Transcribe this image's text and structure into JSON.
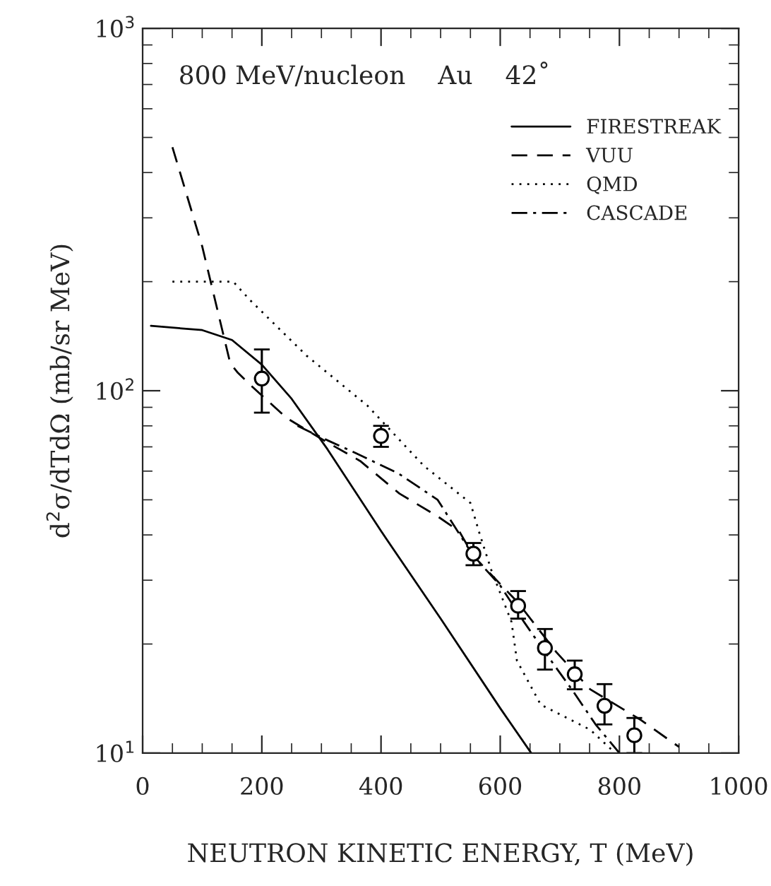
{
  "chart_data": {
    "type": "line",
    "xlabel": "NEUTRON KINETIC ENERGY, T (MeV)",
    "ylabel": "d$^{2}$σ/dTdΩ (mb/sr MeV)",
    "annotations": [
      "800 MeV/nucleon    Au    42˚"
    ],
    "log": "y",
    "xlim": [
      0,
      1000
    ],
    "ylim": [
      10,
      1000
    ],
    "xticks": [
      0,
      200,
      400,
      600,
      800,
      1000
    ],
    "yticks": [
      {
        "value": 10,
        "label": "10$^{1}$"
      },
      {
        "value": 100,
        "label": "10$^{2}$"
      },
      {
        "value": 1000,
        "label": "10$^{3}$"
      }
    ],
    "grid": false,
    "legend": "top right",
    "series": [
      {
        "name": "FIRESTREAK",
        "line_style": "solid",
        "color": "#000000",
        "x": [
          14,
          100,
          150,
          200,
          250,
          310,
          400,
          500,
          600,
          652
        ],
        "values": [
          151,
          147,
          138,
          118,
          95,
          69,
          41,
          23.5,
          13.3,
          10
        ]
      },
      {
        "name": "VUU",
        "line_style": "dashed",
        "color": "#000000",
        "x": [
          50,
          100,
          147,
          160,
          180,
          242,
          310,
          365,
          431,
          495,
          531,
          555,
          630,
          694,
          751,
          834,
          900
        ],
        "values": [
          470,
          250,
          119,
          112,
          104,
          84,
          72,
          64,
          52,
          45,
          41,
          35,
          26,
          19,
          15,
          12.4,
          10.4
        ]
      },
      {
        "name": "QMD",
        "line_style": "dotted",
        "color": "#000000",
        "x": [
          50,
          152,
          180,
          275,
          377,
          472,
          550,
          566,
          585,
          619,
          628,
          668,
          751,
          793
        ],
        "values": [
          200,
          200,
          178,
          125,
          91,
          62,
          49,
          40,
          32,
          23,
          18,
          13.6,
          11.6,
          10
        ]
      },
      {
        "name": "CASCADE",
        "line_style": "dashdot",
        "color": "#000000",
        "x": [
          260,
          310,
          360,
          430,
          495,
          555,
          600,
          640,
          680,
          720,
          760,
          800
        ],
        "values": [
          80,
          73,
          67,
          59,
          50,
          35,
          29,
          23,
          18.5,
          15,
          12,
          10
        ]
      },
      {
        "type": "scatter",
        "marker": "circle",
        "color": "#000000",
        "x": [
          200,
          400,
          555,
          630,
          675,
          725,
          775,
          825
        ],
        "values": [
          108,
          75,
          35.5,
          25.5,
          19.5,
          16.5,
          13.5,
          11.2
        ],
        "errors": [
          [
            87,
            130
          ],
          [
            70,
            80
          ],
          [
            33,
            38
          ],
          [
            23.5,
            28
          ],
          [
            17,
            22
          ],
          [
            15,
            18
          ],
          [
            12,
            15.5
          ],
          [
            10,
            12.5
          ]
        ]
      }
    ]
  }
}
